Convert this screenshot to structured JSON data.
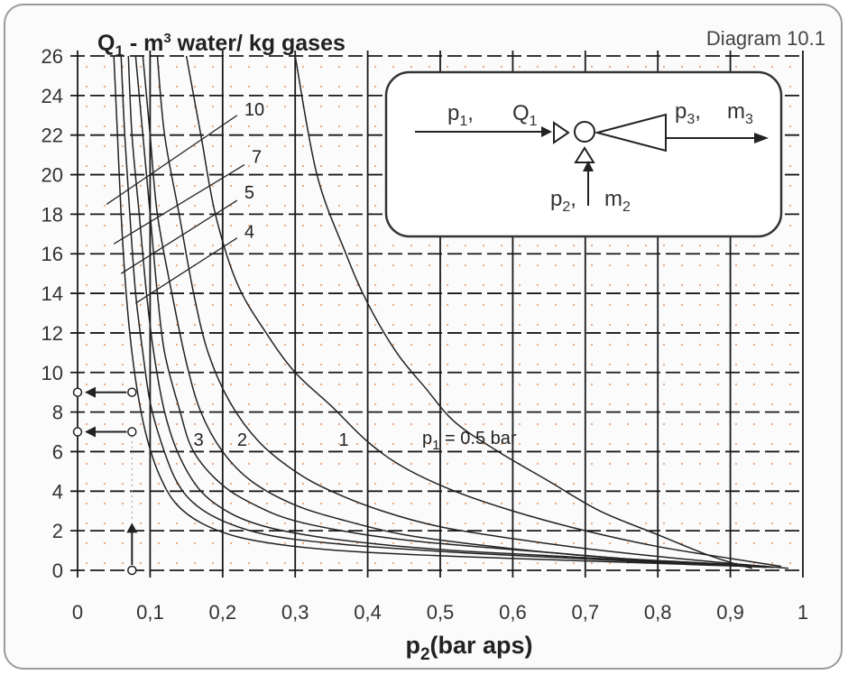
{
  "chart_data": {
    "type": "line",
    "title": "Diagram 10.1",
    "ylabel_main": "Q",
    "ylabel_sub": "1",
    "ylabel_rest1": " - m",
    "ylabel_sup": "3",
    "ylabel_rest2": " water/ kg gases",
    "xlabel_main": "p",
    "xlabel_sub": "2",
    "xlabel_rest": "(bar aps)",
    "xlim": [
      0,
      1
    ],
    "ylim": [
      0,
      26
    ],
    "x_ticks": [
      "0",
      "0,1",
      "0,2",
      "0,3",
      "0,4",
      "0,5",
      "0,6",
      "0,7",
      "0,8",
      "0,9",
      "1"
    ],
    "y_ticks": [
      "0",
      "2",
      "4",
      "6",
      "8",
      "10",
      "12",
      "14",
      "16",
      "18",
      "20",
      "22",
      "24",
      "26"
    ],
    "grid": true,
    "series": [
      {
        "name": "p1 = 0.5 bar",
        "label_main": "p",
        "label_sub": "1",
        "label_rest": " = 0.5 bar",
        "points": [
          [
            0.3,
            26
          ],
          [
            0.33,
            20
          ],
          [
            0.37,
            16
          ],
          [
            0.4,
            13.5
          ],
          [
            0.44,
            11
          ],
          [
            0.48,
            9.2
          ],
          [
            0.52,
            7.5
          ],
          [
            0.58,
            6.0
          ],
          [
            0.65,
            4.5
          ],
          [
            0.72,
            3.0
          ],
          [
            0.8,
            1.8
          ],
          [
            0.86,
            0.9
          ],
          [
            0.9,
            0.4
          ],
          [
            0.93,
            0.1
          ]
        ]
      },
      {
        "name": "1",
        "label": "1",
        "points": [
          [
            0.15,
            26
          ],
          [
            0.17,
            22
          ],
          [
            0.19,
            18
          ],
          [
            0.22,
            14.5
          ],
          [
            0.26,
            12
          ],
          [
            0.3,
            10
          ],
          [
            0.35,
            8.3
          ],
          [
            0.4,
            6.5
          ],
          [
            0.45,
            5.2
          ],
          [
            0.52,
            4.0
          ],
          [
            0.6,
            3.0
          ],
          [
            0.7,
            2.0
          ],
          [
            0.8,
            1.2
          ],
          [
            0.9,
            0.6
          ],
          [
            0.97,
            0.2
          ]
        ]
      },
      {
        "name": "2",
        "label": "2",
        "points": [
          [
            0.11,
            26
          ],
          [
            0.12,
            22
          ],
          [
            0.14,
            18
          ],
          [
            0.16,
            14
          ],
          [
            0.18,
            11
          ],
          [
            0.21,
            8.5
          ],
          [
            0.25,
            6.5
          ],
          [
            0.3,
            5.0
          ],
          [
            0.35,
            4.0
          ],
          [
            0.42,
            3.0
          ],
          [
            0.5,
            2.2
          ],
          [
            0.6,
            1.6
          ],
          [
            0.7,
            1.1
          ],
          [
            0.8,
            0.7
          ],
          [
            0.9,
            0.35
          ],
          [
            0.98,
            0.1
          ]
        ]
      },
      {
        "name": "3",
        "label": "3",
        "points": [
          [
            0.09,
            26
          ],
          [
            0.1,
            22
          ],
          [
            0.11,
            18
          ],
          [
            0.13,
            14
          ],
          [
            0.15,
            10.5
          ],
          [
            0.17,
            8
          ],
          [
            0.2,
            6
          ],
          [
            0.24,
            4.5
          ],
          [
            0.3,
            3.3
          ],
          [
            0.37,
            2.5
          ],
          [
            0.45,
            1.8
          ],
          [
            0.55,
            1.3
          ],
          [
            0.65,
            0.9
          ],
          [
            0.75,
            0.6
          ],
          [
            0.85,
            0.35
          ],
          [
            0.95,
            0.15
          ]
        ]
      },
      {
        "name": "4",
        "label": "4",
        "points": [
          [
            0.08,
            26
          ],
          [
            0.09,
            22
          ],
          [
            0.1,
            18
          ],
          [
            0.11,
            14
          ],
          [
            0.12,
            11
          ],
          [
            0.14,
            8.2
          ],
          [
            0.16,
            6
          ],
          [
            0.2,
            4.3
          ],
          [
            0.25,
            3.2
          ],
          [
            0.3,
            2.5
          ],
          [
            0.38,
            1.9
          ],
          [
            0.46,
            1.5
          ],
          [
            0.55,
            1.2
          ],
          [
            0.65,
            0.9
          ],
          [
            0.75,
            0.6
          ],
          [
            0.85,
            0.4
          ],
          [
            0.95,
            0.2
          ]
        ]
      },
      {
        "name": "5",
        "label": "5",
        "points": [
          [
            0.07,
            26
          ],
          [
            0.075,
            22
          ],
          [
            0.085,
            18
          ],
          [
            0.095,
            14
          ],
          [
            0.105,
            11
          ],
          [
            0.12,
            8
          ],
          [
            0.14,
            5.8
          ],
          [
            0.17,
            4.0
          ],
          [
            0.21,
            2.9
          ],
          [
            0.26,
            2.2
          ],
          [
            0.33,
            1.7
          ],
          [
            0.42,
            1.3
          ],
          [
            0.52,
            1.0
          ],
          [
            0.62,
            0.8
          ],
          [
            0.72,
            0.6
          ],
          [
            0.82,
            0.4
          ],
          [
            0.92,
            0.2
          ]
        ]
      },
      {
        "name": "7",
        "label": "7",
        "points": [
          [
            0.06,
            26
          ],
          [
            0.065,
            22
          ],
          [
            0.072,
            18
          ],
          [
            0.08,
            14
          ],
          [
            0.09,
            11
          ],
          [
            0.1,
            8.5
          ],
          [
            0.115,
            6.5
          ],
          [
            0.135,
            4.6
          ],
          [
            0.16,
            3.4
          ],
          [
            0.2,
            2.5
          ],
          [
            0.26,
            1.8
          ],
          [
            0.34,
            1.4
          ],
          [
            0.44,
            1.1
          ],
          [
            0.55,
            0.85
          ],
          [
            0.66,
            0.65
          ],
          [
            0.77,
            0.45
          ],
          [
            0.88,
            0.28
          ],
          [
            0.96,
            0.15
          ]
        ]
      },
      {
        "name": "10",
        "label": "10",
        "points": [
          [
            0.05,
            26
          ],
          [
            0.055,
            22
          ],
          [
            0.06,
            18
          ],
          [
            0.067,
            14
          ],
          [
            0.075,
            11
          ],
          [
            0.085,
            8.5
          ],
          [
            0.097,
            6.5
          ],
          [
            0.113,
            4.8
          ],
          [
            0.135,
            3.4
          ],
          [
            0.17,
            2.4
          ],
          [
            0.22,
            1.7
          ],
          [
            0.29,
            1.25
          ],
          [
            0.38,
            0.95
          ],
          [
            0.49,
            0.75
          ],
          [
            0.6,
            0.6
          ],
          [
            0.72,
            0.45
          ],
          [
            0.84,
            0.3
          ],
          [
            0.94,
            0.18
          ]
        ]
      }
    ],
    "leader_lines": [
      {
        "label": "10",
        "from": [
          0.04,
          18.5
        ],
        "to": [
          0.22,
          23.0
        ]
      },
      {
        "label": "7",
        "from": [
          0.05,
          16.5
        ],
        "to": [
          0.23,
          20.5
        ]
      },
      {
        "label": "5",
        "from": [
          0.06,
          15.0
        ],
        "to": [
          0.22,
          18.7
        ]
      },
      {
        "label": "4",
        "from": [
          0.08,
          13.5
        ],
        "to": [
          0.22,
          16.8
        ]
      }
    ],
    "example_points": [
      [
        0,
        9
      ],
      [
        0.075,
        9
      ],
      [
        0,
        7
      ],
      [
        0.075,
        7
      ],
      [
        0.075,
        0
      ]
    ],
    "curve_label_positions": [
      {
        "label": "1",
        "x": 0.36,
        "y": 6.3
      },
      {
        "label": "2",
        "x": 0.22,
        "y": 6.3
      },
      {
        "label": "3",
        "x": 0.16,
        "y": 6.3
      },
      {
        "label": "10",
        "x": 0.23,
        "y": 23.0
      },
      {
        "label": "7",
        "x": 0.24,
        "y": 20.6
      },
      {
        "label": "5",
        "x": 0.23,
        "y": 18.8
      },
      {
        "label": "4",
        "x": 0.23,
        "y": 16.8
      }
    ]
  },
  "inset": {
    "p1_main": "p",
    "p1_sub": "1",
    "q1_main": "Q",
    "q1_sub": "1",
    "p3_main": "p",
    "p3_sub": "3",
    "m3_main": "m",
    "m3_sub": "3",
    "p2_main": "p",
    "p2_sub": "2",
    "m2_main": "m",
    "m2_sub": "2"
  },
  "colors": {
    "grid_major": "#1a1a1a",
    "curve": "#222222",
    "dots": "#e8a67a"
  }
}
